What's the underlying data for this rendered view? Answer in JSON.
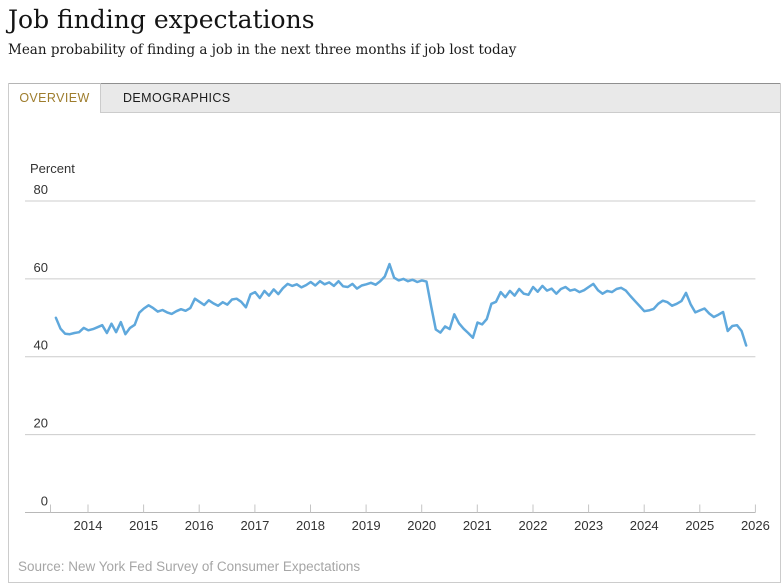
{
  "header": {
    "title": "Job finding expectations",
    "subtitle": "Mean probability of finding a job in the next three months if job lost today"
  },
  "tabs": {
    "overview": "OVERVIEW",
    "demographics": "DEMOGRAPHICS",
    "active": "OVERVIEW"
  },
  "footer": {
    "source": "Source: New York Fed Survey of Consumer Expectations"
  },
  "colors": {
    "line": "#5fa8dc",
    "grid": "#cccccc",
    "axis_line": "#b8b8b8",
    "tick": "#c4c4c4",
    "label_text": "#333333",
    "active_tab_text": "#9e7d2d",
    "tab_strip_bg": "#e9e9e9",
    "source_text": "#a6a6a6"
  },
  "chart_data": {
    "type": "line",
    "title": "Job finding expectations",
    "subtitle": "Mean probability of finding a job in the next three months if job lost today",
    "ylabel": "Percent",
    "xlabel": "",
    "ylim": [
      0,
      80
    ],
    "y_gridlines": [
      80,
      60,
      40,
      20,
      0
    ],
    "x_tick_labels": [
      "2014",
      "2015",
      "2016",
      "2017",
      "2018",
      "2019",
      "2020",
      "2021",
      "2022",
      "2023",
      "2024",
      "2025",
      "2026"
    ],
    "x_start": "2013-06",
    "x_end": "2025-11",
    "frequency": "monthly",
    "grid": true,
    "legend": false,
    "series": [
      {
        "name": "Mean probability of finding a job in the next three months if job lost today",
        "values": [
          50.0,
          47.2,
          45.9,
          45.8,
          46.1,
          46.3,
          47.4,
          46.8,
          47.1,
          47.6,
          48.1,
          46.1,
          48.5,
          46.3,
          48.9,
          45.8,
          47.4,
          48.2,
          51.3,
          52.4,
          53.2,
          52.5,
          51.6,
          52.0,
          51.4,
          51.0,
          51.7,
          52.2,
          51.8,
          52.5,
          54.9,
          54.1,
          53.3,
          54.5,
          53.7,
          53.1,
          54.0,
          53.4,
          54.7,
          54.9,
          54.1,
          52.7,
          56.0,
          56.6,
          55.1,
          56.9,
          55.7,
          57.3,
          56.1,
          57.6,
          58.7,
          58.2,
          58.6,
          57.8,
          58.4,
          59.2,
          58.3,
          59.4,
          58.6,
          59.1,
          58.2,
          59.4,
          58.1,
          57.9,
          58.7,
          57.5,
          58.3,
          58.6,
          59.0,
          58.5,
          59.4,
          60.6,
          63.8,
          60.3,
          59.6,
          60.0,
          59.4,
          59.8,
          59.2,
          59.6,
          59.3,
          52.9,
          47.0,
          46.2,
          47.8,
          47.1,
          50.9,
          48.6,
          47.2,
          46.1,
          44.9,
          48.8,
          48.3,
          49.7,
          53.6,
          54.1,
          56.6,
          55.3,
          56.9,
          55.7,
          57.4,
          56.2,
          55.9,
          57.9,
          56.7,
          58.2,
          57.0,
          57.5,
          56.2,
          57.4,
          57.9,
          57.0,
          57.3,
          56.6,
          57.1,
          57.9,
          58.7,
          57.1,
          56.2,
          56.9,
          56.6,
          57.4,
          57.7,
          57.0,
          55.6,
          54.3,
          53.0,
          51.7,
          51.9,
          52.3,
          53.6,
          54.4,
          54.0,
          53.1,
          53.6,
          54.3,
          56.4,
          53.5,
          51.4,
          51.9,
          52.4,
          51.1,
          50.2,
          50.8,
          51.5,
          46.6,
          47.9,
          48.1,
          46.6,
          42.9
        ]
      }
    ]
  }
}
